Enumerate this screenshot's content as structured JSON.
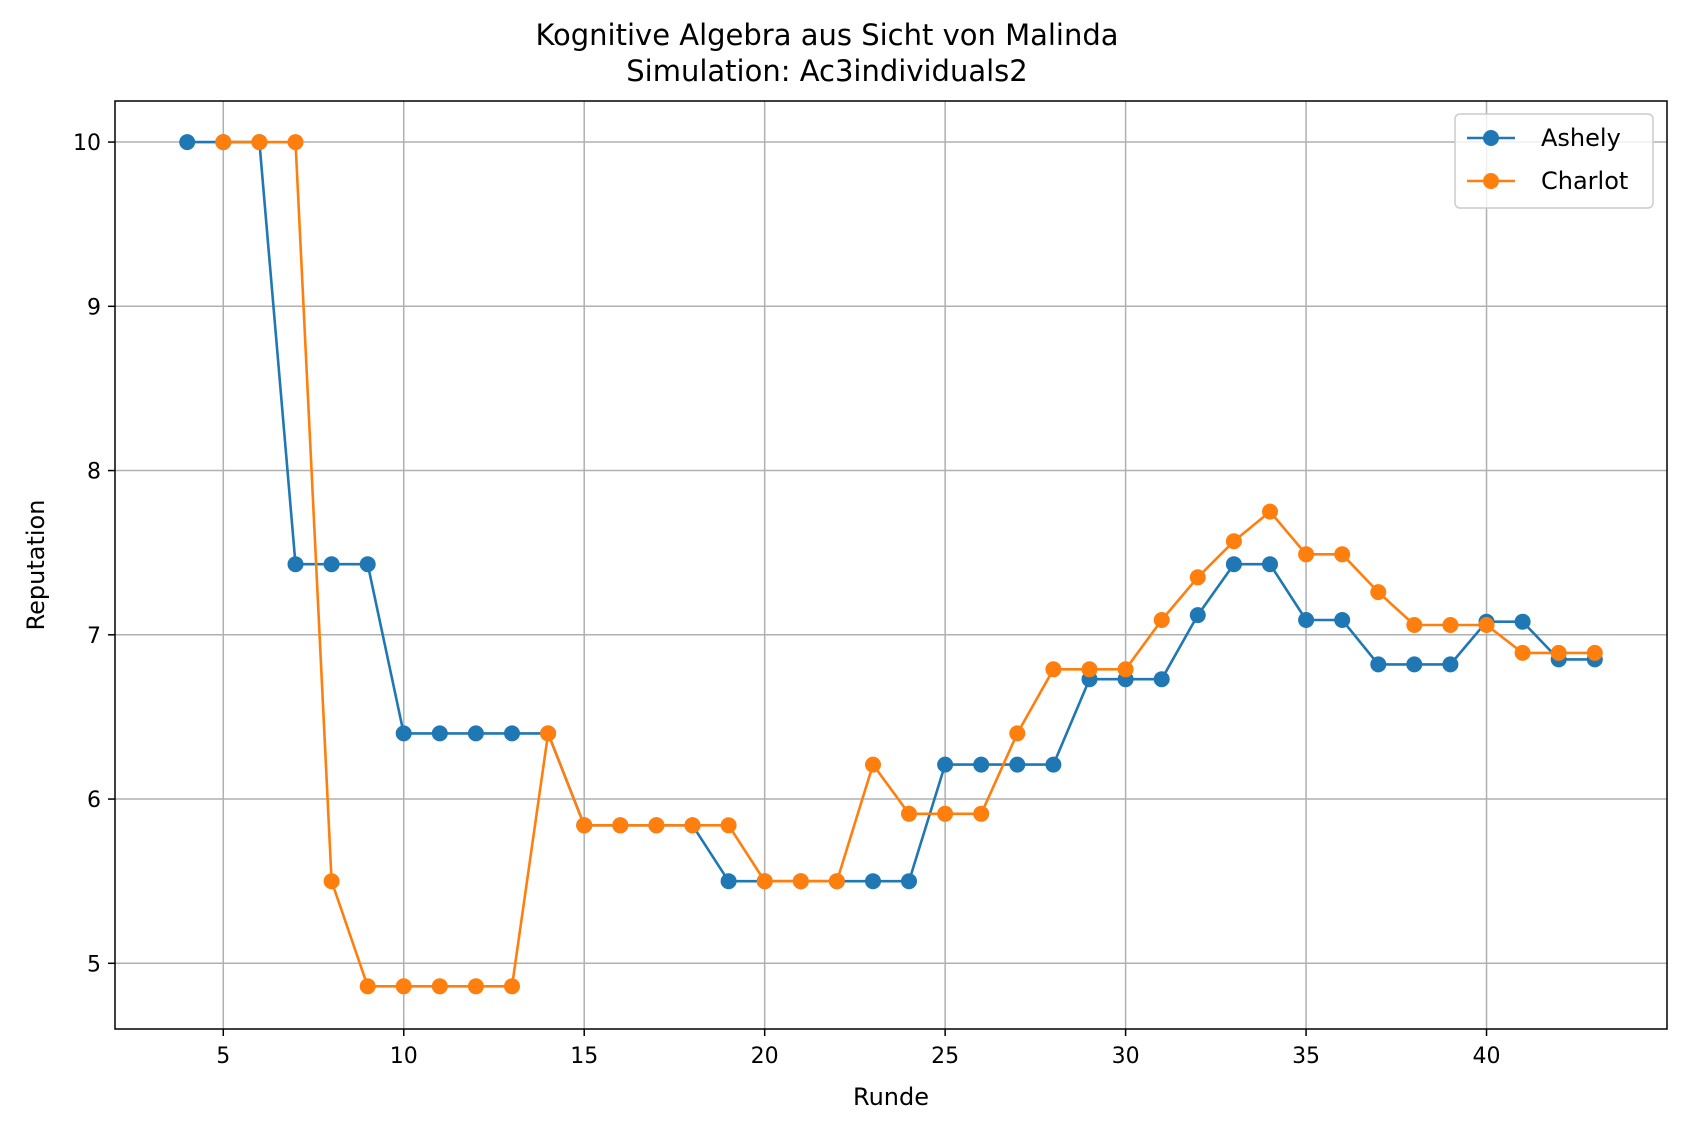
{
  "chart_data": {
    "type": "line",
    "title": "Kognitive Algebra aus Sicht von Malinda",
    "subtitle": "Simulation: Ac3individuals2",
    "xlabel": "Runde",
    "ylabel": "Reputation",
    "xlim": [
      2,
      45
    ],
    "ylim": [
      4.6,
      10.25
    ],
    "xticks": [
      5,
      10,
      15,
      20,
      25,
      30,
      35,
      40
    ],
    "yticks": [
      5,
      6,
      7,
      8,
      9,
      10
    ],
    "grid": true,
    "legend_position": "top-right",
    "x": [
      4,
      5,
      6,
      7,
      8,
      9,
      10,
      11,
      12,
      13,
      14,
      15,
      16,
      17,
      18,
      19,
      20,
      21,
      22,
      23,
      24,
      25,
      26,
      27,
      28,
      29,
      30,
      31,
      32,
      33,
      34,
      35,
      36,
      37,
      38,
      39,
      40,
      41,
      42,
      43
    ],
    "series": [
      {
        "name": "Ashely",
        "color": "#1f77b4",
        "values": [
          10,
          10,
          10,
          7.43,
          7.43,
          7.43,
          6.4,
          6.4,
          6.4,
          6.4,
          6.4,
          5.84,
          5.84,
          5.84,
          5.84,
          5.5,
          5.5,
          5.5,
          5.5,
          5.5,
          5.5,
          6.21,
          6.21,
          6.21,
          6.21,
          6.73,
          6.73,
          6.73,
          7.12,
          7.43,
          7.43,
          7.09,
          7.09,
          6.82,
          6.82,
          6.82,
          7.08,
          7.08,
          6.85,
          6.85
        ]
      },
      {
        "name": "Charlot",
        "color": "#ff7f0e",
        "values": [
          null,
          10,
          10,
          10,
          5.5,
          4.86,
          4.86,
          4.86,
          4.86,
          4.86,
          6.4,
          5.84,
          5.84,
          5.84,
          5.84,
          5.84,
          5.5,
          5.5,
          5.5,
          6.21,
          5.91,
          5.91,
          5.91,
          6.4,
          6.79,
          6.79,
          6.79,
          7.09,
          7.35,
          7.57,
          7.75,
          7.49,
          7.49,
          7.26,
          7.06,
          7.06,
          7.06,
          6.89,
          6.89,
          6.89
        ]
      }
    ]
  }
}
